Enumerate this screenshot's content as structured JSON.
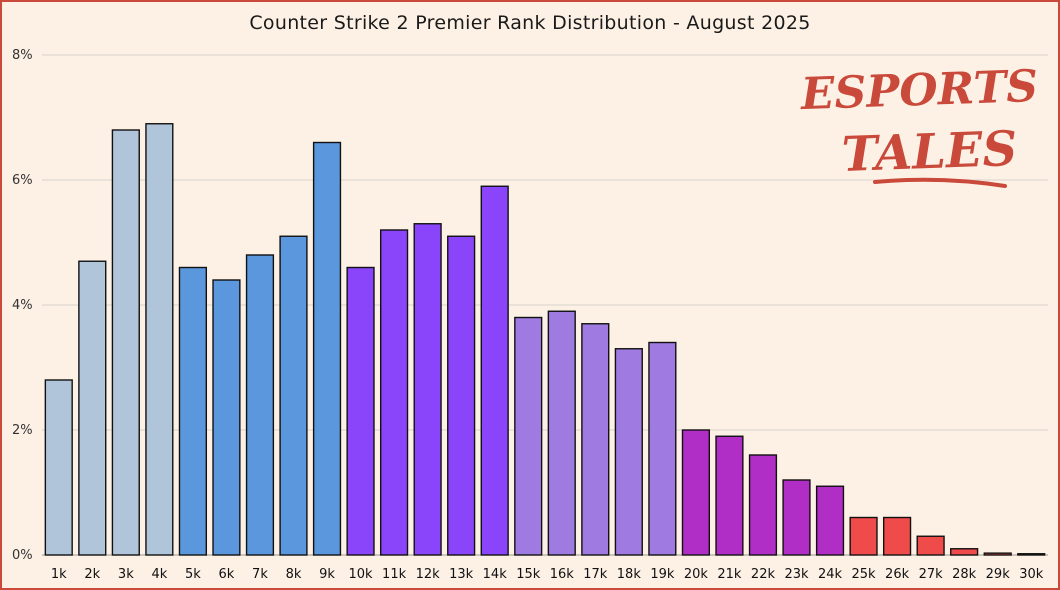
{
  "chart_data": {
    "type": "bar",
    "title": "Counter Strike 2 Premier Rank Distribution - August 2025",
    "xlabel": "",
    "ylabel": "",
    "ylim": [
      0,
      8
    ],
    "yticks": [
      "0%",
      "2%",
      "4%",
      "6%",
      "8%"
    ],
    "grid": true,
    "categories": [
      "1k",
      "2k",
      "3k",
      "4k",
      "5k",
      "6k",
      "7k",
      "8k",
      "9k",
      "10k",
      "11k",
      "12k",
      "13k",
      "14k",
      "15k",
      "16k",
      "17k",
      "18k",
      "19k",
      "20k",
      "21k",
      "22k",
      "23k",
      "24k",
      "25k",
      "26k",
      "27k",
      "28k",
      "29k",
      "30k"
    ],
    "values": [
      2.8,
      4.7,
      6.8,
      6.9,
      4.6,
      4.4,
      4.8,
      5.1,
      6.6,
      4.6,
      5.2,
      5.3,
      5.1,
      5.9,
      3.8,
      3.9,
      3.7,
      3.3,
      3.4,
      2.0,
      1.9,
      1.6,
      1.2,
      1.1,
      0.6,
      0.6,
      0.3,
      0.1,
      0.03,
      0.02
    ],
    "colors": [
      "#b0c4da",
      "#b0c4da",
      "#b0c4da",
      "#b0c4da",
      "#5b97dc",
      "#5b97dc",
      "#5b97dc",
      "#5b97dc",
      "#5b97dc",
      "#8a45fb",
      "#8a45fb",
      "#8a45fb",
      "#8a45fb",
      "#8a45fb",
      "#9f7ae0",
      "#9f7ae0",
      "#9f7ae0",
      "#9f7ae0",
      "#9f7ae0",
      "#b02ec6",
      "#b02ec6",
      "#b02ec6",
      "#b02ec6",
      "#b02ec6",
      "#ef4b4b",
      "#ef4b4b",
      "#ef4b4b",
      "#ef4b4b",
      "#ef4b4b",
      "#ef4b4b"
    ]
  },
  "logo": {
    "line1": "ESPORTS",
    "line2": "TALES",
    "color": "#c9493a"
  },
  "colors": {
    "background": "#fdf1e6",
    "border": "#c9493a",
    "grid": "#d8d2cc"
  }
}
